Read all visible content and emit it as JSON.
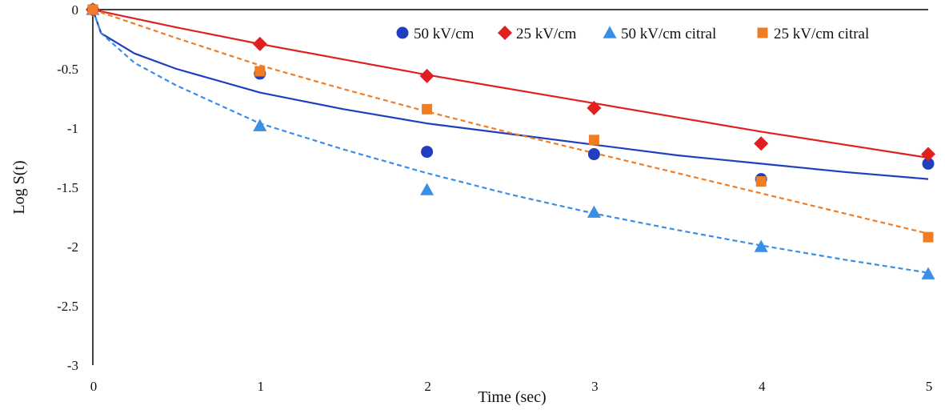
{
  "chart_data": {
    "type": "scatter",
    "title": "",
    "xlabel": "Time (sec)",
    "ylabel": "Log S(t)",
    "xlim": [
      0,
      5
    ],
    "ylim": [
      -3,
      0
    ],
    "x_ticks": [
      "0",
      "1",
      "2",
      "3",
      "4",
      "5"
    ],
    "y_ticks": [
      "0",
      "-0.5",
      "-1",
      "-1.5",
      "-2",
      "-2.5",
      "-3"
    ],
    "legend_position": "top-right",
    "series": [
      {
        "name": "50 kV/cm",
        "marker": "circle",
        "color": "#1f3fbf",
        "fit_line": "solid",
        "x": [
          0,
          1,
          2,
          3,
          4,
          5
        ],
        "y": [
          0,
          -0.54,
          -1.2,
          -1.22,
          -1.43,
          -1.3
        ],
        "fit": [
          [
            0,
            0
          ],
          [
            0.05,
            -0.2
          ],
          [
            0.25,
            -0.37
          ],
          [
            0.5,
            -0.5
          ],
          [
            1,
            -0.7
          ],
          [
            1.5,
            -0.84
          ],
          [
            2,
            -0.96
          ],
          [
            2.5,
            -1.05
          ],
          [
            3,
            -1.14
          ],
          [
            3.5,
            -1.23
          ],
          [
            4,
            -1.3
          ],
          [
            4.5,
            -1.37
          ],
          [
            5,
            -1.43
          ]
        ]
      },
      {
        "name": "25 kV/cm",
        "marker": "diamond",
        "color": "#e01f1f",
        "fit_line": "solid",
        "x": [
          0,
          1,
          2,
          3,
          4,
          5
        ],
        "y": [
          0,
          -0.29,
          -0.56,
          -0.83,
          -1.13,
          -1.22
        ],
        "fit": [
          [
            0,
            0
          ],
          [
            0.5,
            -0.15
          ],
          [
            1,
            -0.29
          ],
          [
            1.5,
            -0.42
          ],
          [
            2,
            -0.55
          ],
          [
            2.5,
            -0.67
          ],
          [
            3,
            -0.79
          ],
          [
            3.5,
            -0.91
          ],
          [
            4,
            -1.03
          ],
          [
            4.5,
            -1.14
          ],
          [
            5,
            -1.25
          ]
        ]
      },
      {
        "name": "50 kV/cm citral",
        "marker": "triangle",
        "color": "#3a8ee6",
        "fit_line": "dashed",
        "x": [
          0,
          1,
          2,
          3,
          4,
          5
        ],
        "y": [
          0,
          -0.98,
          -1.52,
          -1.71,
          -2.0,
          -2.23
        ],
        "fit": [
          [
            0,
            0
          ],
          [
            0.05,
            -0.2
          ],
          [
            0.25,
            -0.45
          ],
          [
            0.5,
            -0.64
          ],
          [
            1,
            -0.96
          ],
          [
            1.5,
            -1.18
          ],
          [
            2,
            -1.38
          ],
          [
            2.5,
            -1.56
          ],
          [
            3,
            -1.72
          ],
          [
            3.5,
            -1.86
          ],
          [
            4,
            -1.99
          ],
          [
            4.5,
            -2.11
          ],
          [
            5,
            -2.22
          ]
        ]
      },
      {
        "name": "25 kV/cm citral",
        "marker": "square",
        "color": "#ef7d25",
        "fit_line": "dashed",
        "x": [
          0,
          1,
          2,
          3,
          4,
          5
        ],
        "y": [
          0,
          -0.52,
          -0.84,
          -1.1,
          -1.45,
          -1.92
        ],
        "fit": [
          [
            0,
            0
          ],
          [
            0.5,
            -0.24
          ],
          [
            1,
            -0.47
          ],
          [
            1.5,
            -0.67
          ],
          [
            2,
            -0.86
          ],
          [
            2.5,
            -1.04
          ],
          [
            3,
            -1.21
          ],
          [
            3.5,
            -1.38
          ],
          [
            4,
            -1.55
          ],
          [
            4.5,
            -1.72
          ],
          [
            5,
            -1.89
          ]
        ]
      }
    ]
  }
}
